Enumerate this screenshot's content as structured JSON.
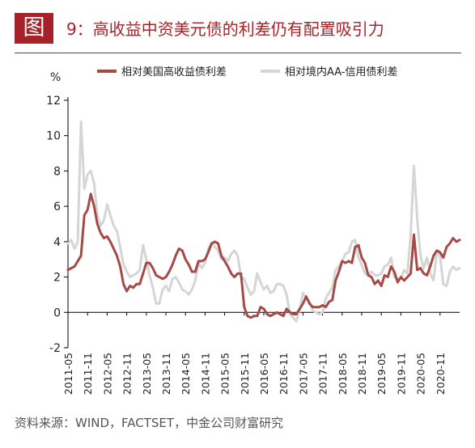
{
  "header": {
    "badge": "图",
    "title": "9：高收益中资美元债的利差仍有配置吸引力"
  },
  "source": "资料来源：WIND，FACTSET，中金公司财富研究",
  "colors": {
    "brand": "#a52228",
    "series1": "#a54a45",
    "series2": "#d5d5d5"
  },
  "chart_data": {
    "type": "line",
    "title": "",
    "xlabel": "",
    "ylabel": "%",
    "ylim": [
      -2,
      12
    ],
    "yticks": [
      -2,
      0,
      2,
      4,
      6,
      8,
      10,
      12
    ],
    "xlim": [
      "2011-05",
      "2021-05"
    ],
    "xticks": [
      "2011-05",
      "2011-11",
      "2012-05",
      "2012-11",
      "2013-05",
      "2013-11",
      "2014-05",
      "2014-11",
      "2015-05",
      "2015-11",
      "2016-05",
      "2016-11",
      "2017-05",
      "2017-11",
      "2018-05",
      "2018-11",
      "2019-05",
      "2019-11",
      "2020-05",
      "2020-11"
    ],
    "grid": false,
    "legend_position": "top",
    "series": [
      {
        "name": "相对美国高收益债利差",
        "color": "#a54a45",
        "points": [
          [
            "2011-05",
            2.4
          ],
          [
            "2011-07",
            2.6
          ],
          [
            "2011-09",
            3.2
          ],
          [
            "2011-10",
            5.5
          ],
          [
            "2011-11",
            5.8
          ],
          [
            "2011-12",
            6.7
          ],
          [
            "2012-01",
            6.0
          ],
          [
            "2012-02",
            5.0
          ],
          [
            "2012-03",
            4.5
          ],
          [
            "2012-04",
            4.2
          ],
          [
            "2012-05",
            4.3
          ],
          [
            "2012-06",
            4.0
          ],
          [
            "2012-07",
            3.6
          ],
          [
            "2012-08",
            3.2
          ],
          [
            "2012-09",
            2.6
          ],
          [
            "2012-10",
            1.6
          ],
          [
            "2012-11",
            1.2
          ],
          [
            "2012-12",
            1.5
          ],
          [
            "2013-01",
            1.4
          ],
          [
            "2013-02",
            1.6
          ],
          [
            "2013-03",
            1.6
          ],
          [
            "2013-04",
            2.2
          ],
          [
            "2013-05",
            2.8
          ],
          [
            "2013-06",
            2.8
          ],
          [
            "2013-07",
            2.5
          ],
          [
            "2013-08",
            2.1
          ],
          [
            "2013-09",
            2.0
          ],
          [
            "2013-10",
            1.9
          ],
          [
            "2013-11",
            2.0
          ],
          [
            "2013-12",
            2.3
          ],
          [
            "2014-01",
            2.7
          ],
          [
            "2014-02",
            3.2
          ],
          [
            "2014-03",
            3.6
          ],
          [
            "2014-04",
            3.5
          ],
          [
            "2014-05",
            3.0
          ],
          [
            "2014-06",
            2.7
          ],
          [
            "2014-07",
            2.3
          ],
          [
            "2014-08",
            2.3
          ],
          [
            "2014-09",
            2.9
          ],
          [
            "2014-10",
            2.9
          ],
          [
            "2014-11",
            3.0
          ],
          [
            "2014-12",
            3.4
          ],
          [
            "2015-01",
            3.9
          ],
          [
            "2015-02",
            4.0
          ],
          [
            "2015-03",
            3.9
          ],
          [
            "2015-04",
            3.2
          ],
          [
            "2015-05",
            2.9
          ],
          [
            "2015-06",
            2.6
          ],
          [
            "2015-07",
            2.2
          ],
          [
            "2015-08",
            2.0
          ],
          [
            "2015-09",
            2.2
          ],
          [
            "2015-10",
            2.2
          ],
          [
            "2015-11",
            0.3
          ],
          [
            "2015-12",
            -0.2
          ],
          [
            "2016-01",
            -0.3
          ],
          [
            "2016-02",
            -0.2
          ],
          [
            "2016-03",
            -0.2
          ],
          [
            "2016-04",
            0.3
          ],
          [
            "2016-05",
            0.2
          ],
          [
            "2016-06",
            -0.1
          ],
          [
            "2016-07",
            -0.2
          ],
          [
            "2016-08",
            -0.1
          ],
          [
            "2016-09",
            0.0
          ],
          [
            "2016-10",
            -0.1
          ],
          [
            "2016-11",
            -0.2
          ],
          [
            "2016-12",
            0.2
          ],
          [
            "2017-01",
            0.0
          ],
          [
            "2017-02",
            -0.1
          ],
          [
            "2017-03",
            -0.1
          ],
          [
            "2017-04",
            0.2
          ],
          [
            "2017-05",
            0.5
          ],
          [
            "2017-06",
            0.9
          ],
          [
            "2017-07",
            0.5
          ],
          [
            "2017-08",
            0.3
          ],
          [
            "2017-09",
            0.3
          ],
          [
            "2017-10",
            0.3
          ],
          [
            "2017-11",
            0.4
          ],
          [
            "2017-12",
            0.3
          ],
          [
            "2018-01",
            0.6
          ],
          [
            "2018-02",
            0.7
          ],
          [
            "2018-03",
            1.8
          ],
          [
            "2018-04",
            2.3
          ],
          [
            "2018-05",
            2.9
          ],
          [
            "2018-06",
            2.8
          ],
          [
            "2018-07",
            2.9
          ],
          [
            "2018-08",
            2.8
          ],
          [
            "2018-09",
            3.7
          ],
          [
            "2018-10",
            3.8
          ],
          [
            "2018-11",
            3.1
          ],
          [
            "2018-12",
            2.8
          ],
          [
            "2019-01",
            2.1
          ],
          [
            "2019-02",
            2.0
          ],
          [
            "2019-03",
            1.6
          ],
          [
            "2019-04",
            1.8
          ],
          [
            "2019-05",
            1.5
          ],
          [
            "2019-06",
            2.1
          ],
          [
            "2019-07",
            2.0
          ],
          [
            "2019-08",
            2.6
          ],
          [
            "2019-09",
            2.3
          ],
          [
            "2019-10",
            1.7
          ],
          [
            "2019-11",
            2.0
          ],
          [
            "2019-12",
            1.8
          ],
          [
            "2020-01",
            2.0
          ],
          [
            "2020-02",
            2.2
          ],
          [
            "2020-03",
            4.4
          ],
          [
            "2020-04",
            2.4
          ],
          [
            "2020-05",
            2.5
          ],
          [
            "2020-06",
            2.2
          ],
          [
            "2020-07",
            2.1
          ],
          [
            "2020-08",
            2.6
          ],
          [
            "2020-09",
            3.2
          ],
          [
            "2020-10",
            3.5
          ],
          [
            "2020-11",
            3.4
          ],
          [
            "2020-12",
            3.1
          ],
          [
            "2021-01",
            3.7
          ],
          [
            "2021-02",
            3.9
          ],
          [
            "2021-03",
            4.2
          ],
          [
            "2021-04",
            4.0
          ],
          [
            "2021-05",
            4.1
          ]
        ]
      },
      {
        "name": "相对境内AA-信用债利差",
        "color": "#d5d5d5",
        "points": [
          [
            "2011-05",
            3.9
          ],
          [
            "2011-06",
            4.1
          ],
          [
            "2011-07",
            3.6
          ],
          [
            "2011-08",
            4.0
          ],
          [
            "2011-09",
            10.8
          ],
          [
            "2011-10",
            7.0
          ],
          [
            "2011-11",
            7.8
          ],
          [
            "2011-12",
            8.0
          ],
          [
            "2012-01",
            7.3
          ],
          [
            "2012-02",
            5.5
          ],
          [
            "2012-03",
            4.9
          ],
          [
            "2012-04",
            5.2
          ],
          [
            "2012-05",
            6.1
          ],
          [
            "2012-06",
            5.5
          ],
          [
            "2012-07",
            4.9
          ],
          [
            "2012-08",
            4.6
          ],
          [
            "2012-09",
            3.7
          ],
          [
            "2012-10",
            2.7
          ],
          [
            "2012-11",
            2.3
          ],
          [
            "2012-12",
            2.0
          ],
          [
            "2013-01",
            2.1
          ],
          [
            "2013-02",
            2.2
          ],
          [
            "2013-03",
            2.4
          ],
          [
            "2013-04",
            3.8
          ],
          [
            "2013-05",
            3.0
          ],
          [
            "2013-06",
            2.1
          ],
          [
            "2013-07",
            1.4
          ],
          [
            "2013-08",
            0.5
          ],
          [
            "2013-09",
            0.5
          ],
          [
            "2013-10",
            1.3
          ],
          [
            "2013-11",
            1.5
          ],
          [
            "2013-12",
            1.2
          ],
          [
            "2014-01",
            1.9
          ],
          [
            "2014-02",
            2.0
          ],
          [
            "2014-03",
            1.7
          ],
          [
            "2014-04",
            1.3
          ],
          [
            "2014-05",
            1.2
          ],
          [
            "2014-06",
            1.0
          ],
          [
            "2014-07",
            1.3
          ],
          [
            "2014-08",
            1.8
          ],
          [
            "2014-09",
            2.8
          ],
          [
            "2014-10",
            2.5
          ],
          [
            "2014-11",
            2.8
          ],
          [
            "2014-12",
            3.6
          ],
          [
            "2015-01",
            3.9
          ],
          [
            "2015-02",
            3.7
          ],
          [
            "2015-03",
            3.5
          ],
          [
            "2015-04",
            3.0
          ],
          [
            "2015-05",
            3.1
          ],
          [
            "2015-06",
            2.9
          ],
          [
            "2015-07",
            3.3
          ],
          [
            "2015-08",
            3.5
          ],
          [
            "2015-09",
            3.2
          ],
          [
            "2015-10",
            2.0
          ],
          [
            "2015-11",
            1.9
          ],
          [
            "2015-12",
            1.4
          ],
          [
            "2016-01",
            1.0
          ],
          [
            "2016-02",
            1.2
          ],
          [
            "2016-03",
            2.2
          ],
          [
            "2016-04",
            1.7
          ],
          [
            "2016-05",
            1.3
          ],
          [
            "2016-06",
            1.5
          ],
          [
            "2016-07",
            1.1
          ],
          [
            "2016-08",
            1.2
          ],
          [
            "2016-09",
            1.6
          ],
          [
            "2016-10",
            1.6
          ],
          [
            "2016-11",
            1.5
          ],
          [
            "2016-12",
            1.0
          ],
          [
            "2017-01",
            -0.1
          ],
          [
            "2017-02",
            -0.3
          ],
          [
            "2017-03",
            -0.5
          ],
          [
            "2017-04",
            0.2
          ],
          [
            "2017-05",
            1.1
          ],
          [
            "2017-06",
            0.8
          ],
          [
            "2017-07",
            0.6
          ],
          [
            "2017-08",
            0.1
          ],
          [
            "2017-09",
            0.0
          ],
          [
            "2017-10",
            -0.1
          ],
          [
            "2017-11",
            0.0
          ],
          [
            "2017-12",
            0.8
          ],
          [
            "2018-01",
            1.1
          ],
          [
            "2018-02",
            1.4
          ],
          [
            "2018-03",
            2.4
          ],
          [
            "2018-04",
            2.6
          ],
          [
            "2018-05",
            2.9
          ],
          [
            "2018-06",
            3.3
          ],
          [
            "2018-07",
            3.4
          ],
          [
            "2018-08",
            4.0
          ],
          [
            "2018-09",
            4.1
          ],
          [
            "2018-10",
            3.1
          ],
          [
            "2018-11",
            2.7
          ],
          [
            "2018-12",
            2.2
          ],
          [
            "2019-01",
            2.1
          ],
          [
            "2019-02",
            2.3
          ],
          [
            "2019-03",
            2.1
          ],
          [
            "2019-04",
            2.1
          ],
          [
            "2019-05",
            2.2
          ],
          [
            "2019-06",
            2.6
          ],
          [
            "2019-07",
            2.7
          ],
          [
            "2019-08",
            3.1
          ],
          [
            "2019-09",
            2.0
          ],
          [
            "2019-10",
            1.9
          ],
          [
            "2019-11",
            1.9
          ],
          [
            "2019-12",
            2.4
          ],
          [
            "2020-01",
            2.2
          ],
          [
            "2020-02",
            4.4
          ],
          [
            "2020-03",
            8.3
          ],
          [
            "2020-04",
            5.3
          ],
          [
            "2020-05",
            3.2
          ],
          [
            "2020-06",
            2.5
          ],
          [
            "2020-07",
            3.1
          ],
          [
            "2020-08",
            2.2
          ],
          [
            "2020-09",
            1.8
          ],
          [
            "2020-10",
            3.4
          ],
          [
            "2020-11",
            3.2
          ],
          [
            "2020-12",
            1.6
          ],
          [
            "2021-01",
            1.5
          ],
          [
            "2021-02",
            2.3
          ],
          [
            "2021-03",
            2.6
          ],
          [
            "2021-04",
            2.4
          ],
          [
            "2021-05",
            2.5
          ]
        ]
      }
    ]
  }
}
